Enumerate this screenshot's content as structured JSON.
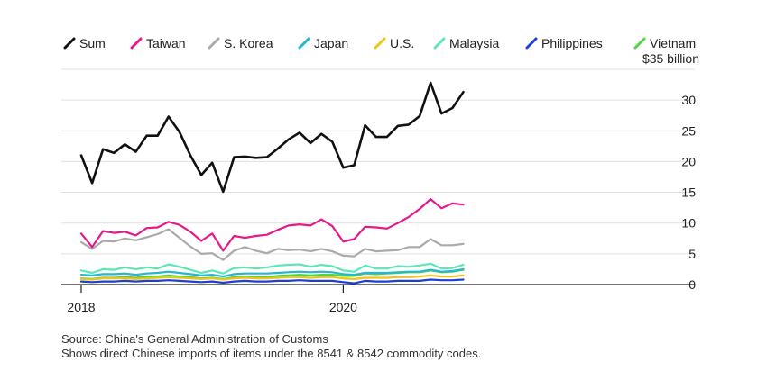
{
  "chart_data": {
    "type": "line",
    "title": "",
    "xlabel": "",
    "ylabel": "",
    "y_unit_label": "$35 billion",
    "ylim": [
      0,
      35
    ],
    "yticks": [
      0,
      5,
      10,
      15,
      20,
      25,
      30
    ],
    "x_start": "2018-01",
    "x_tick_labels": [
      "2018",
      "2020"
    ],
    "x_tick_index": [
      0,
      24
    ],
    "grid": true,
    "legend_position": "top",
    "series": [
      {
        "name": "Sum",
        "color": "#111111",
        "values": [
          21,
          16.5,
          22,
          21.4,
          22.8,
          21.6,
          24.2,
          24.2,
          27.3,
          24.8,
          21,
          17.8,
          19.8,
          15.1,
          20.7,
          20.8,
          20.6,
          20.7,
          22.1,
          23.6,
          24.7,
          23,
          24.5,
          23.2,
          19,
          19.4,
          25.9,
          24,
          24,
          25.8,
          26,
          27.4,
          32.8,
          27.8,
          28.7,
          31.3
        ]
      },
      {
        "name": "Taiwan",
        "color": "#e5198a",
        "values": [
          8.3,
          6.1,
          8.7,
          8.4,
          8.6,
          8,
          9.2,
          9.3,
          10.2,
          9.7,
          8.6,
          7.1,
          8.3,
          5.5,
          7.9,
          7.6,
          7.9,
          8.1,
          8.9,
          9.6,
          9.8,
          9.6,
          10.6,
          9.5,
          7,
          7.4,
          9.4,
          9.3,
          9.1,
          10,
          11,
          12.3,
          13.9,
          12.4,
          13.2,
          13
        ]
      },
      {
        "name": "S. Korea",
        "color": "#aaaaaa",
        "values": [
          6.9,
          5.8,
          7.1,
          7,
          7.5,
          7.2,
          7.7,
          8.2,
          9,
          7.6,
          6.2,
          5,
          5.1,
          4,
          5.5,
          6.1,
          5.5,
          5.1,
          5.8,
          5.6,
          5.7,
          5.4,
          5.8,
          5.4,
          4.7,
          4.6,
          5.8,
          5.4,
          5.5,
          5.6,
          6.1,
          6.1,
          7.4,
          6.4,
          6.4,
          6.6
        ]
      },
      {
        "name": "Japan",
        "color": "#23b7d1",
        "values": [
          1.6,
          1.5,
          1.7,
          1.7,
          1.8,
          1.6,
          1.8,
          1.9,
          2.1,
          1.9,
          1.7,
          1.5,
          1.6,
          1.3,
          1.7,
          1.8,
          1.8,
          1.8,
          1.9,
          2,
          2.1,
          2,
          2.1,
          2,
          1.7,
          1.6,
          1.9,
          1.9,
          1.9,
          2,
          2.1,
          2.1,
          2.4,
          2.1,
          2.2,
          2.5
        ]
      },
      {
        "name": "U.S.",
        "color": "#f2c418",
        "values": [
          0.9,
          0.8,
          1,
          1,
          1,
          0.9,
          1,
          1.1,
          1.2,
          1.1,
          1,
          0.9,
          1,
          0.8,
          1,
          1.1,
          1,
          1,
          1.1,
          1.2,
          1.2,
          1.1,
          1.2,
          1.2,
          1,
          0.9,
          1.1,
          1.1,
          1.1,
          1.2,
          1.2,
          1.3,
          1.5,
          1.3,
          1.3,
          1.5
        ]
      },
      {
        "name": "Malaysia",
        "color": "#5ee6b4",
        "values": [
          2.3,
          1.9,
          2.5,
          2.4,
          2.8,
          2.5,
          2.8,
          2.6,
          3.3,
          2.9,
          2.4,
          1.9,
          2.3,
          1.8,
          2.7,
          2.8,
          2.6,
          2.8,
          3.1,
          3.2,
          3.3,
          2.9,
          3.2,
          3,
          2.3,
          2.1,
          3.1,
          2.6,
          2.6,
          3,
          2.9,
          3.1,
          3.4,
          2.6,
          2.7,
          3.2
        ]
      },
      {
        "name": "Philippines",
        "color": "#1c3fd6",
        "values": [
          0.5,
          0.4,
          0.5,
          0.5,
          0.6,
          0.5,
          0.6,
          0.6,
          0.7,
          0.6,
          0.5,
          0.4,
          0.5,
          0.3,
          0.5,
          0.6,
          0.5,
          0.5,
          0.6,
          0.6,
          0.7,
          0.6,
          0.6,
          0.6,
          0.4,
          0.2,
          0.6,
          0.5,
          0.5,
          0.6,
          0.6,
          0.6,
          0.8,
          0.7,
          0.7,
          0.8
        ]
      },
      {
        "name": "Vietnam",
        "color": "#4fd63c",
        "values": [
          1,
          0.9,
          1.1,
          1.1,
          1.2,
          1.1,
          1.3,
          1.3,
          1.5,
          1.3,
          1.2,
          1,
          1.1,
          0.9,
          1.2,
          1.3,
          1.2,
          1.2,
          1.4,
          1.5,
          1.6,
          1.5,
          1.6,
          1.6,
          1.4,
          1.4,
          1.8,
          1.7,
          1.8,
          1.9,
          2,
          2,
          2.3,
          2,
          2.1,
          2.4
        ]
      }
    ]
  },
  "footer": {
    "source": "Source: China's General Administration of Customs",
    "note": "Shows direct Chinese imports of items under the 8541 & 8542 commodity codes."
  }
}
